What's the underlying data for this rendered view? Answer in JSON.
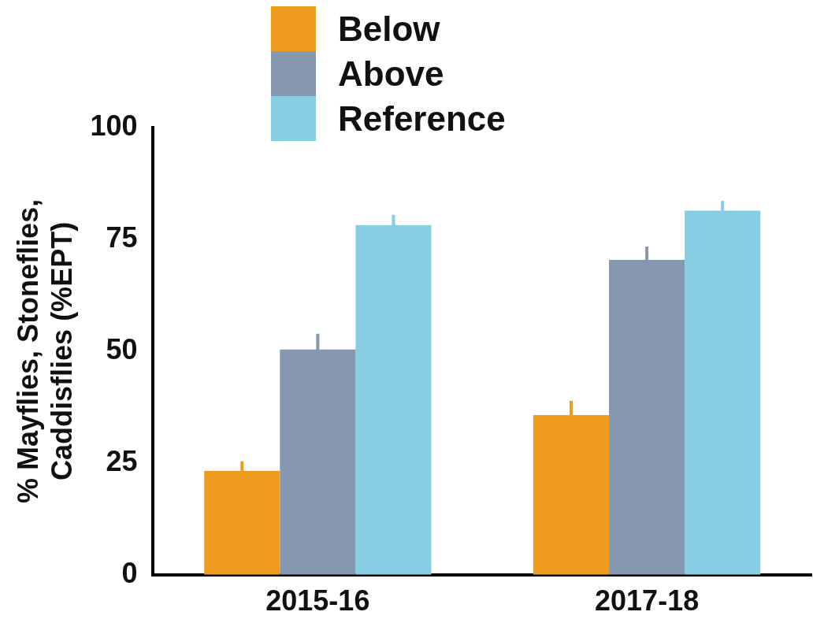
{
  "chart_data": {
    "type": "bar",
    "ylabel": "% Mayflies, Stoneflies, Caddisflies (%EPT)",
    "categories": [
      "2015-16",
      "2017-18"
    ],
    "series": [
      {
        "name": "Below",
        "color": "#f09c1f",
        "values": [
          23.2,
          35.7
        ],
        "errors": [
          2.2,
          3.2
        ]
      },
      {
        "name": "Above",
        "color": "#8598b0",
        "values": [
          50.4,
          70.4
        ],
        "errors": [
          3.5,
          3.0
        ]
      },
      {
        "name": "Reference",
        "color": "#87cee2",
        "values": [
          78.2,
          81.4
        ],
        "errors": [
          2.3,
          2.2
        ]
      }
    ],
    "ylim": [
      0,
      100
    ],
    "yticks": [
      0,
      25,
      50,
      75,
      100
    ],
    "grid": false,
    "legend": "top left"
  }
}
